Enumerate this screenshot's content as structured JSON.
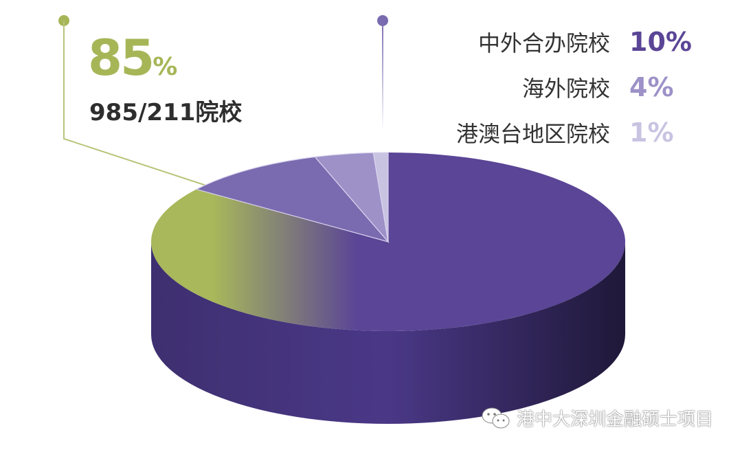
{
  "chart_data": {
    "type": "pie",
    "style": "3d",
    "slices": [
      {
        "label": "985/211院校",
        "value": 85,
        "display": "85",
        "unit": "%",
        "color": "#5a4596",
        "gradient_color": "#a8b85a"
      },
      {
        "label": "中外合办院校",
        "value": 10,
        "display": "10%",
        "color": "#7a6bb0"
      },
      {
        "label": "海外院校",
        "value": 4,
        "display": "4%",
        "color": "#9d91c8"
      },
      {
        "label": "港澳台地区院校",
        "value": 1,
        "display": "1%",
        "color": "#c9c3e2"
      }
    ],
    "legend_placement": "top-right",
    "title": ""
  },
  "watermark": {
    "text": "港中大深圳金融硕士项目",
    "icon": "wechat-icon"
  }
}
